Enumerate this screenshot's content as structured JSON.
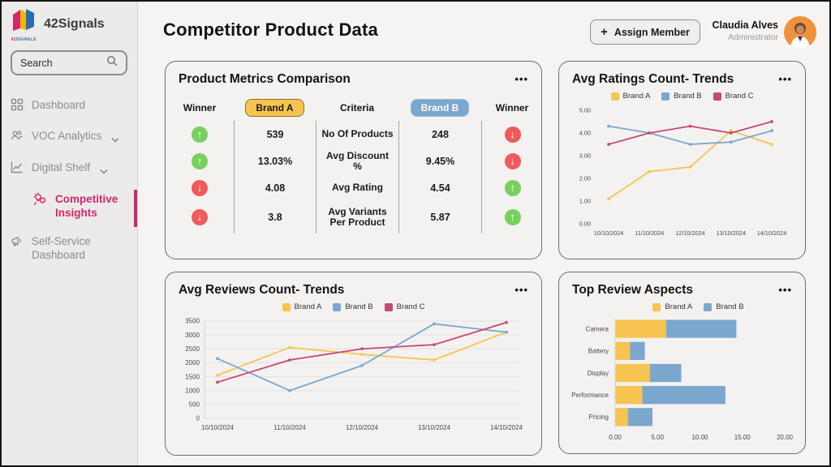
{
  "sidebar": {
    "brand": {
      "name": "42Signals",
      "logo_caption_1": "42",
      "logo_caption_2": "SIGNALS"
    },
    "search": {
      "placeholder": "Search"
    },
    "items": [
      {
        "label": "Dashboard",
        "icon": "grid"
      },
      {
        "label": "VOC Analytics",
        "icon": "people",
        "chevron": true
      },
      {
        "label": "Digital Shelf",
        "icon": "chart",
        "chevron": true
      },
      {
        "label": "Competitive Insights",
        "icon": "insights",
        "active": true
      },
      {
        "label": "Self-Service Dashboard",
        "icon": "megaphone"
      }
    ]
  },
  "header": {
    "title": "Competitor Product Data",
    "assign_button": "Assign Member",
    "user": {
      "name": "Claudia Alves",
      "role": "Administrator"
    }
  },
  "icons": {
    "menu": "•••",
    "plus": "+"
  },
  "metrics_card": {
    "title": "Product Metrics Comparison",
    "columns": {
      "winner": "Winner",
      "brand_a": "Brand A",
      "criteria": "Criteria",
      "brand_b": "Brand B"
    },
    "rows": [
      {
        "winner_left": "up",
        "brand_a": "539",
        "criteria": "No Of Products",
        "brand_b": "248",
        "winner_right": "down"
      },
      {
        "winner_left": "up",
        "brand_a": "13.03%",
        "criteria": "Avg Discount %",
        "brand_b": "9.45%",
        "winner_right": "down"
      },
      {
        "winner_left": "down",
        "brand_a": "4.08",
        "criteria": "Avg Rating",
        "brand_b": "4.54",
        "winner_right": "up"
      },
      {
        "winner_left": "down",
        "brand_a": "3.8",
        "criteria": "Avg Variants Per Product",
        "brand_b": "5.87",
        "winner_right": "up"
      }
    ]
  },
  "colors": {
    "brand_a": "#F7C44F",
    "brand_b": "#7BA7CF",
    "brand_c": "#C64A6F",
    "up": "#77D15E",
    "down": "#F05A5A",
    "accent_pink": "#D6256D"
  },
  "chart_data": [
    {
      "type": "line",
      "title": "Avg Ratings Count- Trends",
      "x": [
        "10/10/2024",
        "11/10/2024",
        "12/10/2024",
        "13/10/2024",
        "14/10/2024"
      ],
      "ylim": [
        0,
        5
      ],
      "y_ticks": [
        0,
        1,
        2,
        3,
        4,
        5
      ],
      "y_tick_labels": [
        "0.00",
        "1.00",
        "2.00",
        "3.00",
        "4.00",
        "5.00"
      ],
      "grid": false,
      "legend_position": "top",
      "series": [
        {
          "name": "Brand A",
          "color_key": "brand_a",
          "values": [
            1.1,
            2.3,
            2.5,
            4.1,
            3.5
          ]
        },
        {
          "name": "Brand B",
          "color_key": "brand_b",
          "values": [
            4.3,
            4.0,
            3.5,
            3.6,
            4.1
          ]
        },
        {
          "name": "Brand C",
          "color_key": "brand_c",
          "values": [
            3.5,
            4.0,
            4.3,
            4.0,
            4.5
          ]
        }
      ]
    },
    {
      "type": "line",
      "title": "Avg Reviews Count- Trends",
      "x": [
        "10/10/2024",
        "11/10/2024",
        "12/10/2024",
        "13/10/2024",
        "14/10/2024"
      ],
      "ylim": [
        0,
        3500
      ],
      "y_ticks": [
        0,
        500,
        1000,
        1500,
        2000,
        2500,
        3000,
        3500
      ],
      "y_tick_labels": [
        "0",
        "500",
        "1000",
        "1500",
        "2000",
        "2500",
        "3000",
        "3500"
      ],
      "grid": true,
      "legend_position": "top",
      "series": [
        {
          "name": "Brand A",
          "color_key": "brand_a",
          "values": [
            1550,
            2550,
            2300,
            2100,
            3100
          ]
        },
        {
          "name": "Brand B",
          "color_key": "brand_b",
          "values": [
            2150,
            1000,
            1900,
            3400,
            3100
          ]
        },
        {
          "name": "Brand C",
          "color_key": "brand_c",
          "values": [
            1300,
            2100,
            2500,
            2650,
            3450
          ]
        }
      ]
    },
    {
      "type": "bar",
      "orientation": "horizontal-stacked",
      "title": "Top Review Aspects",
      "categories": [
        "Camera",
        "Battery",
        "Display",
        "Performance",
        "Pricing"
      ],
      "xlim": [
        0,
        20
      ],
      "x_ticks": [
        0,
        5,
        10,
        15,
        20
      ],
      "x_tick_labels": [
        "0.00",
        "5.00",
        "10.00",
        "15.00",
        "20.00"
      ],
      "legend_position": "top",
      "series": [
        {
          "name": "Brand A",
          "color_key": "brand_a",
          "values": [
            6.0,
            1.75,
            4.1,
            3.2,
            1.5
          ]
        },
        {
          "name": "Brand B",
          "color_key": "brand_b",
          "values": [
            8.3,
            1.75,
            3.7,
            9.8,
            2.9
          ]
        }
      ]
    }
  ]
}
